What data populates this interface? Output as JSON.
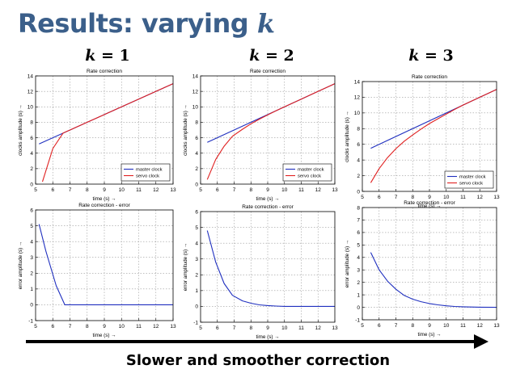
{
  "slide": {
    "title": "Results: varying ",
    "title_var": "k",
    "caption": "Slower and smoother correction"
  },
  "columns": [
    {
      "label_var": "k",
      "label_rest": " = 1"
    },
    {
      "label_var": "k",
      "label_rest": " = 2"
    },
    {
      "label_var": "k",
      "label_rest": " = 3"
    }
  ],
  "chart_data": [
    {
      "type": "line",
      "title": "Rate correction",
      "xlabel": "time (s) →",
      "ylabel": "clocks amplitude (s) →",
      "xlim": [
        5,
        13
      ],
      "ylim": [
        0,
        14
      ],
      "xticks": [
        5,
        6,
        7,
        8,
        9,
        10,
        11,
        12,
        13
      ],
      "yticks": [
        0,
        2,
        4,
        6,
        8,
        10,
        12,
        14
      ],
      "grid": true,
      "legend_position": "bottom-right",
      "series": [
        {
          "name": "master clock",
          "color": "#1f2fbf",
          "x": [
            5.2,
            13
          ],
          "y": [
            5.2,
            13
          ]
        },
        {
          "name": "servo clock",
          "color": "#e02020",
          "x": [
            5.4,
            6.0,
            6.6,
            7,
            8,
            9,
            10,
            11,
            12,
            13
          ],
          "y": [
            0.3,
            4.6,
            6.6,
            7,
            8,
            9,
            10,
            11,
            12,
            13
          ]
        }
      ]
    },
    {
      "type": "line",
      "title": "Rate correction",
      "xlabel": "time (s) →",
      "ylabel": "clocks amplitude (s) →",
      "xlim": [
        5,
        13
      ],
      "ylim": [
        0,
        14
      ],
      "xticks": [
        5,
        6,
        7,
        8,
        9,
        10,
        11,
        12,
        13
      ],
      "yticks": [
        0,
        2,
        4,
        6,
        8,
        10,
        12,
        14
      ],
      "grid": true,
      "legend_position": "bottom-right",
      "series": [
        {
          "name": "master clock",
          "color": "#1f2fbf",
          "x": [
            5.4,
            13
          ],
          "y": [
            5.4,
            13
          ]
        },
        {
          "name": "servo clock",
          "color": "#e02020",
          "x": [
            5.4,
            5.9,
            6.4,
            6.9,
            7.5,
            8,
            8.5,
            9,
            9.5,
            10,
            11,
            12,
            13
          ],
          "y": [
            0.6,
            3.2,
            4.9,
            6.2,
            7.1,
            7.8,
            8.4,
            8.95,
            9.5,
            10,
            11,
            12,
            13
          ]
        }
      ]
    },
    {
      "type": "line",
      "title": "Rate correction",
      "xlabel": "time (s) →",
      "ylabel": "clocks amplitude (s) →",
      "xlim": [
        5,
        13
      ],
      "ylim": [
        0,
        14
      ],
      "xticks": [
        5,
        6,
        7,
        8,
        9,
        10,
        11,
        12,
        13
      ],
      "yticks": [
        0,
        2,
        4,
        6,
        8,
        10,
        12,
        14
      ],
      "grid": true,
      "legend_position": "bottom-right",
      "series": [
        {
          "name": "master clock",
          "color": "#1f2fbf",
          "x": [
            5.5,
            13
          ],
          "y": [
            5.5,
            13
          ]
        },
        {
          "name": "servo clock",
          "color": "#e02020",
          "x": [
            5.5,
            6,
            6.5,
            7,
            7.5,
            8,
            8.5,
            9,
            9.5,
            10,
            10.5,
            11,
            12,
            13
          ],
          "y": [
            1.1,
            2.9,
            4.3,
            5.45,
            6.4,
            7.2,
            7.95,
            8.65,
            9.25,
            9.85,
            10.45,
            11,
            12,
            13
          ]
        }
      ]
    },
    {
      "type": "line",
      "title": "Rate correction - error",
      "xlabel": "time (s) →",
      "ylabel": "error amplitude (s) →",
      "xlim": [
        5,
        13
      ],
      "ylim": [
        -1,
        6
      ],
      "xticks": [
        5,
        6,
        7,
        8,
        9,
        10,
        11,
        12,
        13
      ],
      "yticks": [
        -1,
        0,
        1,
        2,
        3,
        4,
        5,
        6
      ],
      "grid": true,
      "series": [
        {
          "name": "",
          "color": "#1f2fbf",
          "x": [
            5.2,
            5.6,
            6.2,
            6.7,
            7,
            13
          ],
          "y": [
            5.1,
            3.4,
            1.2,
            0,
            0,
            0
          ]
        }
      ]
    },
    {
      "type": "line",
      "title": "Rate correction - error",
      "xlabel": "time (s) →",
      "ylabel": "error amplitude (s) →",
      "xlim": [
        5,
        13
      ],
      "ylim": [
        -1,
        6
      ],
      "xticks": [
        5,
        6,
        7,
        8,
        9,
        10,
        11,
        12,
        13
      ],
      "yticks": [
        -1,
        0,
        1,
        2,
        3,
        4,
        5,
        6
      ],
      "grid": true,
      "series": [
        {
          "name": "",
          "color": "#1f2fbf",
          "x": [
            5.4,
            5.9,
            6.4,
            6.9,
            7.5,
            8,
            8.5,
            9,
            9.5,
            10,
            11,
            12,
            13
          ],
          "y": [
            4.8,
            2.8,
            1.45,
            0.7,
            0.35,
            0.2,
            0.1,
            0.05,
            0.02,
            0,
            0,
            0,
            0
          ]
        }
      ]
    },
    {
      "type": "line",
      "title": "Rate correction - error",
      "xlabel": "time (s) →",
      "ylabel": "error amplitude (s) →",
      "xlim": [
        5,
        13
      ],
      "ylim": [
        -1,
        8
      ],
      "xticks": [
        5,
        6,
        7,
        8,
        9,
        10,
        11,
        12,
        13
      ],
      "yticks": [
        -1,
        0,
        1,
        2,
        3,
        4,
        5,
        6,
        7,
        8
      ],
      "grid": true,
      "series": [
        {
          "name": "",
          "color": "#1f2fbf",
          "x": [
            5.5,
            6,
            6.5,
            7,
            7.5,
            8,
            8.5,
            9,
            9.5,
            10,
            10.5,
            11,
            12,
            13
          ],
          "y": [
            4.4,
            3.0,
            2.1,
            1.45,
            0.95,
            0.65,
            0.45,
            0.3,
            0.2,
            0.12,
            0.07,
            0.04,
            0.01,
            0
          ]
        }
      ]
    }
  ]
}
